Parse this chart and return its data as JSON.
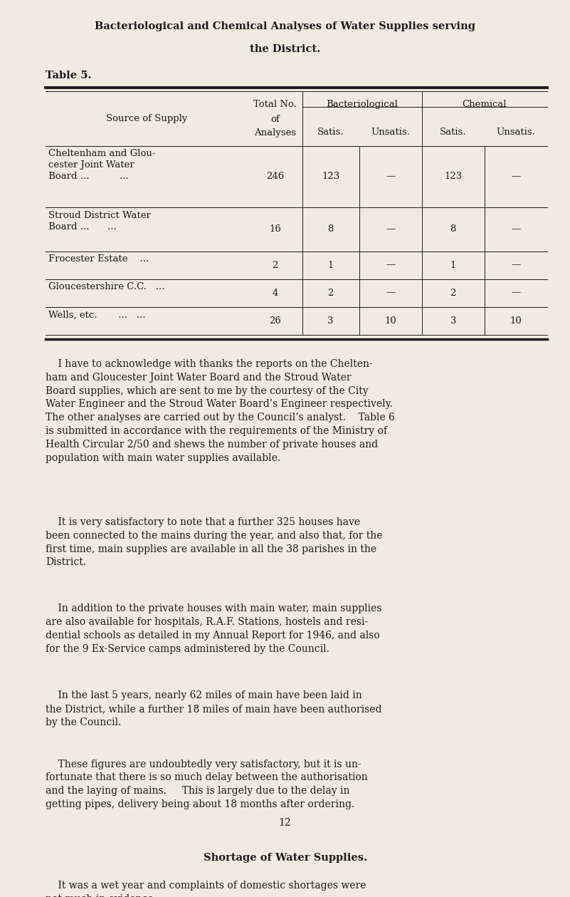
{
  "bg_color": "#f0ebe0",
  "text_color": "#1a1a1a",
  "page_width": 8.01,
  "page_height": 12.59,
  "title_line1": "Bacteriological and Chemical Analyses of Water Supplies serving",
  "title_line2": "the District.",
  "table_label": "Table 5.",
  "table_rows": [
    [
      "Cheltenham and Glou-\ncester Joint Water\nBoard ...          ...   ",
      "246",
      "123",
      "—",
      "123",
      "—"
    ],
    [
      "Stroud District Water\nBoard ...      ...   ",
      "16",
      "8",
      "—",
      "8",
      "—"
    ],
    [
      "Frocester Estate    ...",
      "2",
      "1",
      "—",
      "1",
      "—"
    ],
    [
      "Gloucestershire C.C.   ...",
      "4",
      "2",
      "—",
      "2",
      "—"
    ],
    [
      "Wells, etc.       ...   ...",
      "26",
      "3",
      "10",
      "3",
      "10"
    ]
  ],
  "body_paragraphs": [
    "    I have to acknowledge with thanks the reports on the Chelten-\nham and Gloucester Joint Water Board and the Stroud Water\nBoard supplies, which are sent to me by the courtesy of the City\nWater Engineer and the Stroud Water Board’s Engineer respectively.\nThe other analyses are carried out by the Council’s analyst.    Table 6\nis submitted in accordance with the requirements of the Ministry of\nHealth Circular 2/50 and shews the number of private houses and\npopulation with main water supplies available.",
    "    It is very satisfactory to note that a further 325 houses have\nbeen connected to the mains during the year, and also that, for the\nfirst time, main supplies are available in all the 38 parishes in the\nDistrict.",
    "    In addition to the private houses with main water, main supplies\nare also available for hospitals, R.A.F. Stations, hostels and resi-\ndential schools as detailed in my Annual Report for 1946, and also\nfor the 9 Ex-Service camps administered by the Council.",
    "    In the last 5 years, nearly 62 miles of main have been laid in\nthe District, while a further 18 miles of main have been authorised\nby the Council.",
    "    These figures are undoubtedly very satisfactory, but it is un-\nfortunate that there is so much delay between the authorisation\nand the laying of mains.     This is largely due to the delay in\ngetting pipes, delivery being about 18 months after ordering."
  ],
  "section_header": "Shortage of Water Supplies.",
  "section_para": "    It was a wet year and complaints of domestic shortages were\nnot much in evidence.",
  "page_number": "12"
}
